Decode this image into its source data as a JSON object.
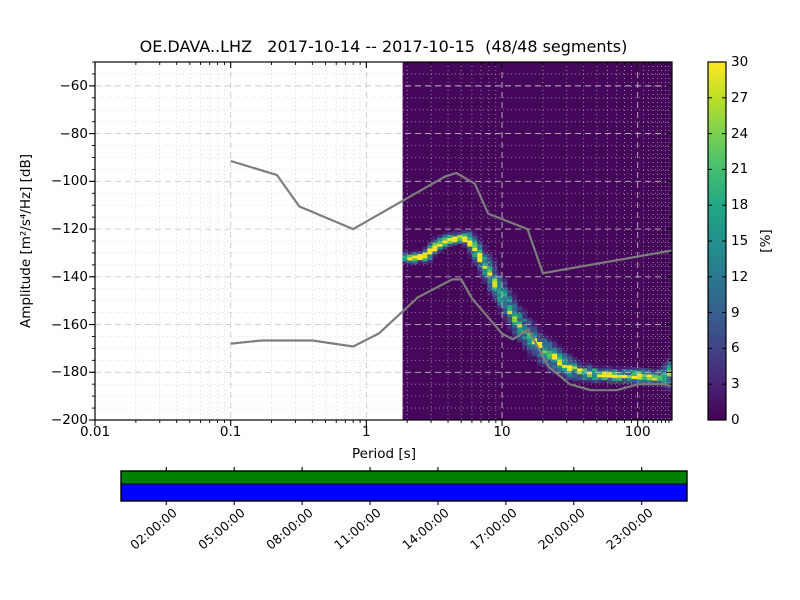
{
  "title": "OE.DAVA..LHZ   2017-10-14 -- 2017-10-15  (48/48 segments)",
  "axes": {
    "xlabel": "Period [s]",
    "ylabel": "Amplitude [m²/s⁴/Hz] [dB]",
    "x_tick_labels": [
      "0.01",
      "0.1",
      "1",
      "10",
      "100"
    ],
    "y_tick_labels": [
      "−60",
      "−80",
      "−100",
      "−120",
      "−140",
      "−160",
      "−180",
      "−200"
    ]
  },
  "colorbar": {
    "label": "[%]",
    "tick_labels": [
      "0",
      "3",
      "6",
      "9",
      "12",
      "15",
      "18",
      "21",
      "24",
      "27",
      "30"
    ]
  },
  "availability": {
    "tick_labels": [
      "02:00:00",
      "05:00:00",
      "08:00:00",
      "11:00:00",
      "14:00:00",
      "17:00:00",
      "20:00:00",
      "23:00:00"
    ],
    "tick_hours": [
      2,
      5,
      8,
      11,
      14,
      17,
      20,
      23
    ],
    "span_hours": [
      0,
      25
    ],
    "bar_top_color": "#008000",
    "bar_bottom_color": "#0000ff"
  },
  "colors": {
    "heatmap_background": "#45075a",
    "noise_model_line": "#7d7d7d",
    "grid": "#c8c8c8",
    "spine": "#000000"
  },
  "chart_data": {
    "type": "heatmap",
    "title": "OE.DAVA..LHZ   2017-10-14 -- 2017-10-15  (48/48 segments)",
    "xlabel": "Period [s]",
    "ylabel": "Amplitude [m²/s⁴/Hz] [dB]",
    "xscale": "log",
    "xlim": [
      0.01,
      179
    ],
    "ylim": [
      -200,
      -50
    ],
    "x_major_ticks": [
      0.01,
      0.1,
      1,
      10,
      100
    ],
    "y_major_ticks": [
      -60,
      -80,
      -100,
      -120,
      -140,
      -160,
      -180,
      -200
    ],
    "y_minor_step": 5,
    "grid": true,
    "colorbar": {
      "label": "[%]",
      "min": 0,
      "max": 30,
      "tick_values": [
        0,
        3,
        6,
        9,
        12,
        15,
        18,
        21,
        24,
        27,
        30
      ],
      "colormap": "viridis"
    },
    "histogram": {
      "period_range": [
        1.85,
        179
      ],
      "columns": 54,
      "db_cell_height": 1.25,
      "max_percent": 30,
      "mode_curve_period_db": [
        [
          1.85,
          -131.5
        ],
        [
          2.1,
          -132.5
        ],
        [
          2.4,
          -131.5
        ],
        [
          2.7,
          -132
        ],
        [
          3.0,
          -129
        ],
        [
          3.4,
          -126.5
        ],
        [
          3.8,
          -125
        ],
        [
          4.4,
          -124
        ],
        [
          5.0,
          -123.5
        ],
        [
          5.6,
          -124.5
        ],
        [
          6.3,
          -128
        ],
        [
          7.0,
          -132.5
        ],
        [
          8.0,
          -138
        ],
        [
          9.0,
          -143
        ],
        [
          10.0,
          -147.5
        ],
        [
          11.5,
          -153.5
        ],
        [
          13.0,
          -158.5
        ],
        [
          15.0,
          -163
        ],
        [
          17.0,
          -166.5
        ],
        [
          19.0,
          -169.5
        ],
        [
          22.0,
          -172
        ],
        [
          26.0,
          -175
        ],
        [
          30.0,
          -177.5
        ],
        [
          36.0,
          -179.5
        ],
        [
          44.0,
          -180.5
        ],
        [
          55.0,
          -181
        ],
        [
          70.0,
          -181.5
        ],
        [
          90.0,
          -181.5
        ],
        [
          115.0,
          -182
        ],
        [
          145.0,
          -182
        ],
        [
          165.0,
          -181.5
        ],
        [
          179.0,
          -180
        ]
      ],
      "spread_curve_period_sigma": [
        [
          1.85,
          1.1
        ],
        [
          3.0,
          1.1
        ],
        [
          5.0,
          1.2
        ],
        [
          6.5,
          2.2
        ],
        [
          8.0,
          2.8
        ],
        [
          12.0,
          3.0
        ],
        [
          20.0,
          3.0
        ],
        [
          28.0,
          2.6
        ],
        [
          40.0,
          1.8
        ],
        [
          60.0,
          1.5
        ],
        [
          100.0,
          1.6
        ],
        [
          179.0,
          2.0
        ]
      ]
    },
    "noise_models": {
      "nhnm_period_db": [
        [
          0.1,
          -91.5
        ],
        [
          0.22,
          -97.4
        ],
        [
          0.32,
          -110.5
        ],
        [
          0.8,
          -120.0
        ],
        [
          3.8,
          -98.0
        ],
        [
          4.6,
          -96.5
        ],
        [
          6.3,
          -101.0
        ],
        [
          7.9,
          -113.5
        ],
        [
          15.4,
          -120.0
        ],
        [
          20.0,
          -138.5
        ],
        [
          179.0,
          -129.0
        ]
      ],
      "nlnm_period_db": [
        [
          0.1,
          -168.0
        ],
        [
          0.17,
          -166.7
        ],
        [
          0.4,
          -166.7
        ],
        [
          0.8,
          -169.2
        ],
        [
          1.24,
          -163.7
        ],
        [
          2.4,
          -148.6
        ],
        [
          4.3,
          -141.1
        ],
        [
          5.0,
          -141.1
        ],
        [
          6.0,
          -149.0
        ],
        [
          10.0,
          -163.8
        ],
        [
          12.0,
          -166.2
        ],
        [
          15.6,
          -162.1
        ],
        [
          21.9,
          -177.5
        ],
        [
          31.6,
          -185.0
        ],
        [
          45.0,
          -187.5
        ],
        [
          70.0,
          -187.5
        ],
        [
          101.0,
          -185.0
        ],
        [
          154.0,
          -185.0
        ],
        [
          179.0,
          -185.4
        ]
      ]
    },
    "viridis_stops": [
      [
        0.0,
        68,
        1,
        84
      ],
      [
        0.1,
        72,
        36,
        117
      ],
      [
        0.2,
        65,
        68,
        135
      ],
      [
        0.3,
        53,
        95,
        141
      ],
      [
        0.4,
        42,
        120,
        142
      ],
      [
        0.5,
        33,
        145,
        140
      ],
      [
        0.6,
        34,
        168,
        132
      ],
      [
        0.7,
        68,
        190,
        112
      ],
      [
        0.8,
        122,
        209,
        81
      ],
      [
        0.9,
        189,
        223,
        38
      ],
      [
        1.0,
        253,
        231,
        37
      ]
    ]
  }
}
